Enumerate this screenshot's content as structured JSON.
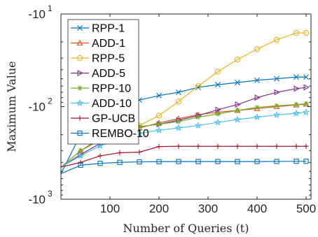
{
  "chart_data": {
    "type": "line",
    "title": "",
    "xlabel": "Number of Queries (t)",
    "ylabel": "Maximum Value",
    "xlim": [
      0,
      510
    ],
    "ylim_exponent": [
      1,
      3
    ],
    "y_scale": "log (negative values)",
    "x_ticks": [
      "100",
      "200",
      "300",
      "400",
      "500"
    ],
    "y_ticks": [
      {
        "base": "-10",
        "exp": "1"
      },
      {
        "base": "-10",
        "exp": "2"
      },
      {
        "base": "-10",
        "exp": "3"
      }
    ],
    "grid": false,
    "legend_position": "top-left",
    "x": [
      0,
      40,
      80,
      120,
      160,
      200,
      240,
      280,
      320,
      360,
      400,
      440,
      480,
      500
    ],
    "series": [
      {
        "name": "RPP-1",
        "color": "#0072BD",
        "marker": "x",
        "values": [
          -530,
          -200,
          -135,
          -100,
          -85,
          -76,
          -70,
          -62,
          -58,
          -55,
          -52,
          -50,
          -48,
          -48
        ]
      },
      {
        "name": "ADD-1",
        "color": "#D95319",
        "marker": "triangle-up",
        "values": [
          -450,
          -300,
          -220,
          -190,
          -170,
          -150,
          -135,
          -122,
          -115,
          -110,
          -105,
          -100,
          -96,
          -94
        ]
      },
      {
        "name": "RPP-5",
        "color": "#EDB120",
        "marker": "circle",
        "values": [
          -450,
          -330,
          -250,
          -200,
          -160,
          -125,
          -88,
          -60,
          -42,
          -31,
          -24,
          -19,
          -16,
          -16
        ]
      },
      {
        "name": "ADD-5",
        "color": "#7E2F8E",
        "marker": "triangle-right",
        "values": [
          -450,
          -330,
          -250,
          -200,
          -165,
          -155,
          -140,
          -125,
          -108,
          -95,
          -80,
          -70,
          -64,
          -62
        ]
      },
      {
        "name": "RPP-10",
        "color": "#77AC30",
        "marker": "asterisk",
        "values": [
          -450,
          -300,
          -230,
          -190,
          -165,
          -155,
          -145,
          -130,
          -120,
          -110,
          -102,
          -98,
          -95,
          -93
        ]
      },
      {
        "name": "ADD-10",
        "color": "#4DBEEE",
        "marker": "star",
        "values": [
          -450,
          -340,
          -265,
          -225,
          -195,
          -180,
          -170,
          -160,
          -148,
          -138,
          -130,
          -123,
          -118,
          -115
        ]
      },
      {
        "name": "GP-UCB",
        "color": "#A2142F",
        "marker": "plus",
        "values": [
          -450,
          -400,
          -340,
          -315,
          -310,
          -270,
          -268,
          -268,
          -268,
          -268,
          -268,
          -268,
          -268,
          -268
        ]
      },
      {
        "name": "REMBO-10",
        "color": "#0072BD",
        "marker": "square",
        "values": [
          -530,
          -430,
          -410,
          -400,
          -395,
          -393,
          -392,
          -392,
          -392,
          -392,
          -392,
          -391,
          -389,
          -389
        ]
      }
    ]
  }
}
